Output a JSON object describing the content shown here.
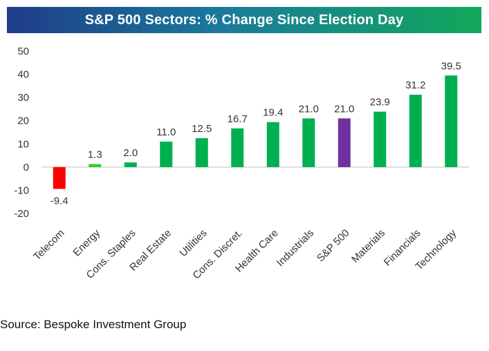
{
  "title": "S&P 500 Sectors: % Change Since Election Day",
  "source": "Source: Bespoke Investment Group",
  "chart_data": {
    "type": "bar",
    "categories": [
      "Telecom",
      "Energy",
      "Cons. Staples",
      "Real Estate",
      "Utilities",
      "Cons. Discret.",
      "Health Care",
      "Industrials",
      "S&P 500",
      "Materials",
      "Financials",
      "Technology"
    ],
    "values": [
      -9.4,
      1.3,
      2.0,
      11.0,
      12.5,
      16.7,
      19.4,
      21.0,
      21.0,
      23.9,
      31.2,
      39.5
    ],
    "data_labels": [
      "-9.4",
      "1.3",
      "2.0",
      "11.0",
      "12.5",
      "16.7",
      "19.4",
      "21.0",
      "21.0",
      "23.9",
      "31.2",
      "39.5"
    ],
    "bar_colors": [
      "#ff0000",
      "#33cc33",
      "#00b050",
      "#00b050",
      "#00b050",
      "#00b050",
      "#00b050",
      "#00b050",
      "#7030a0",
      "#00b050",
      "#00b050",
      "#00b050"
    ],
    "yticks": [
      "50",
      "40",
      "30",
      "20",
      "10",
      "0",
      "-10",
      "-20"
    ],
    "ylim": [
      -20,
      50
    ],
    "grid": false,
    "legend": "none"
  }
}
